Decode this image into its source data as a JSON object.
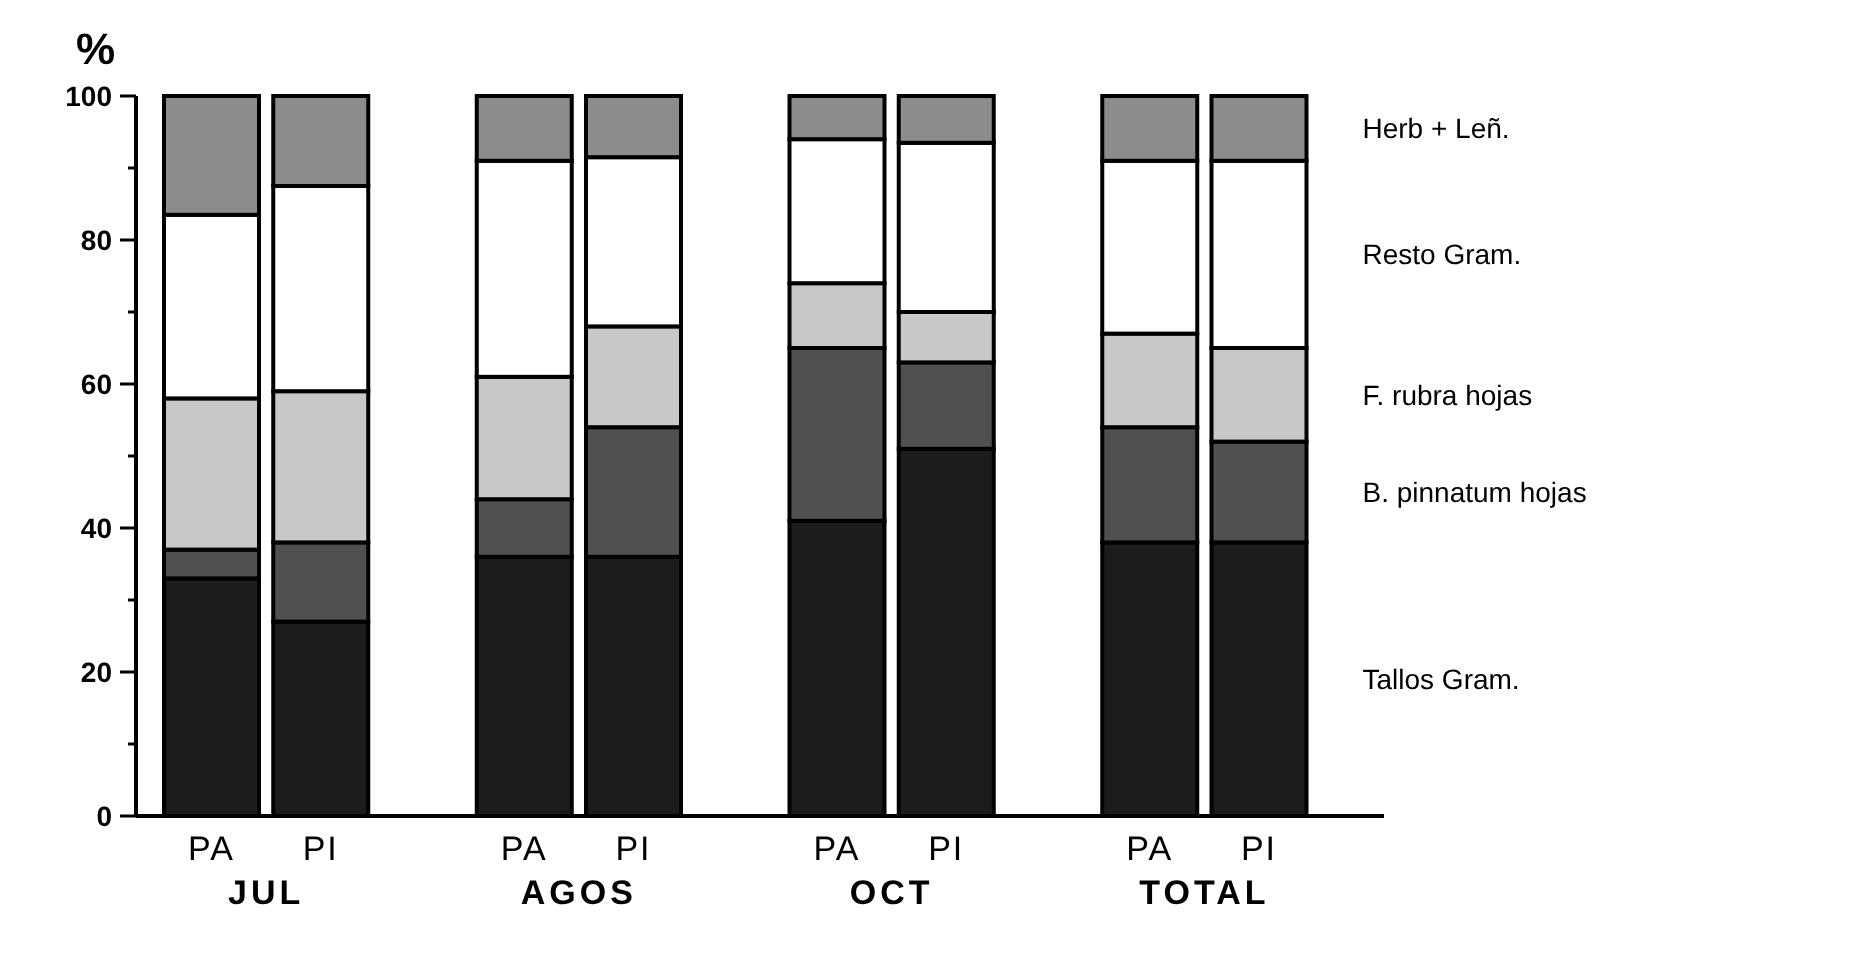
{
  "chart_data": {
    "type": "bar",
    "stacked": true,
    "ylabel": "%",
    "categories": [
      "PA",
      "PI",
      "PA",
      "PI",
      "PA",
      "PI",
      "PA",
      "PI"
    ],
    "annotations": [
      "JUL",
      "AGOS",
      "OCT",
      "TOTAL"
    ],
    "ylim": [
      0,
      100
    ],
    "yticks": [
      0,
      {
        "value": 10,
        "label": null
      },
      20,
      {
        "value": 30,
        "label": null
      },
      40,
      {
        "value": 50,
        "label": null
      },
      60,
      {
        "value": 70,
        "label": null
      },
      80,
      {
        "value": 90,
        "label": null
      },
      100
    ],
    "legend": "right",
    "grid": false,
    "series": [
      {
        "name": "Tallos Gram.",
        "color": "#1c1c1c",
        "values": [
          33,
          27,
          36,
          36,
          41,
          51,
          38,
          38
        ]
      },
      {
        "name": "B. pinnatum hojas",
        "color": "#505050",
        "values": [
          4,
          11,
          8,
          18,
          24,
          12,
          16,
          14
        ]
      },
      {
        "name": "F. rubra hojas",
        "color": "#c8c8c8",
        "values": [
          21,
          21,
          17,
          14,
          9,
          7,
          13,
          13
        ]
      },
      {
        "name": "Resto Gram.",
        "color": "#ffffff",
        "values": [
          25.5,
          28.5,
          30,
          23.5,
          20,
          23.5,
          24,
          26
        ]
      },
      {
        "name": "Herb + Leñ.",
        "color": "#8c8c8c",
        "values": [
          16.5,
          12.5,
          9,
          8.5,
          6,
          6.5,
          9,
          9
        ]
      }
    ]
  }
}
